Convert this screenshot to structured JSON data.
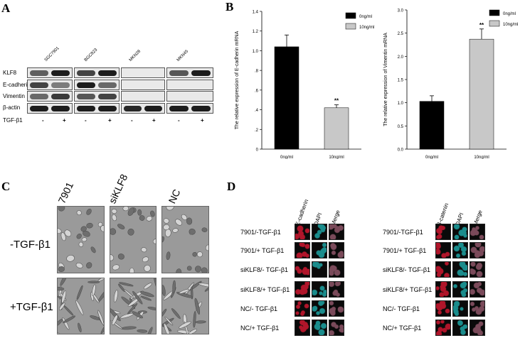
{
  "panel_letters": [
    "A",
    "B",
    "C",
    "D"
  ],
  "panelA": {
    "cell_lines": [
      "SGC7901",
      "BGC823",
      "MKN28",
      "MKN45"
    ],
    "proteins": [
      "KLF8",
      "E-cadherin",
      "Vimentin",
      "β-actin"
    ],
    "treatment_label": "TGF-β1",
    "treatment_signs": [
      "-",
      "+",
      "-",
      "+",
      "-",
      "+",
      "-",
      "+"
    ]
  },
  "panelC": {
    "columns": [
      "7901",
      "siKLF8",
      "NC"
    ],
    "rows": [
      "-TGF-β1",
      "+TGF-β1"
    ]
  },
  "panelD": {
    "left_headers": [
      "E-cadherin",
      "DAPI",
      "Merge"
    ],
    "right_headers": [
      "β-catenin",
      "DAPI",
      "Merge"
    ],
    "left_rows": [
      "7901/-TGF-β1",
      "7901/+ TGF-β1",
      "siKLF8/- TGF-β1",
      "siKLF8/+ TGF-β1",
      "NC/- TGF-β1",
      "NC/+ TGF-β1"
    ],
    "right_rows": [
      "7901/-TGF-β1",
      "7901/+ TGF-β1",
      "siKLF8/- TGF-β1",
      "siKLF8/+ TGF-β1",
      "NC/- TGF-β1",
      "NC/+ TGF-β1"
    ],
    "colors": {
      "red": "#b0152a",
      "cyan": "#1a8c8c",
      "merge": "#7a4a5a"
    }
  },
  "chart_data": [
    {
      "type": "bar",
      "categories": [
        "0ng/ml",
        "10ng/ml"
      ],
      "values": [
        1.04,
        0.42
      ],
      "errors": [
        0.12,
        0.03
      ],
      "ylabel": "The relative expression of E-cadherin mRNA",
      "ylim": [
        0,
        1.4
      ],
      "yticks": [
        "0",
        ".2",
        ".4",
        ".6",
        ".8",
        "1.0",
        "1.2",
        "1.4"
      ],
      "legend": [
        "0ng/ml",
        "10ng/ml"
      ],
      "legend_position": "top-right",
      "significance": [
        "",
        "**"
      ],
      "colors": [
        "#000000",
        "#c8c8c8"
      ]
    },
    {
      "type": "bar",
      "categories": [
        "0ng/ml",
        "10ng/ml"
      ],
      "values": [
        1.03,
        2.37
      ],
      "errors": [
        0.12,
        0.22
      ],
      "ylabel": "The relative expression of Vimentin mRNA",
      "ylim": [
        0,
        3.0
      ],
      "yticks": [
        "0.0",
        "0.5",
        "1.0",
        "1.5",
        "2.0",
        "2.5",
        "3.0"
      ],
      "legend": [
        "0ng/ml",
        "10ng/ml"
      ],
      "legend_position": "top-right",
      "significance": [
        "",
        "**"
      ],
      "colors": [
        "#000000",
        "#c8c8c8"
      ]
    }
  ]
}
